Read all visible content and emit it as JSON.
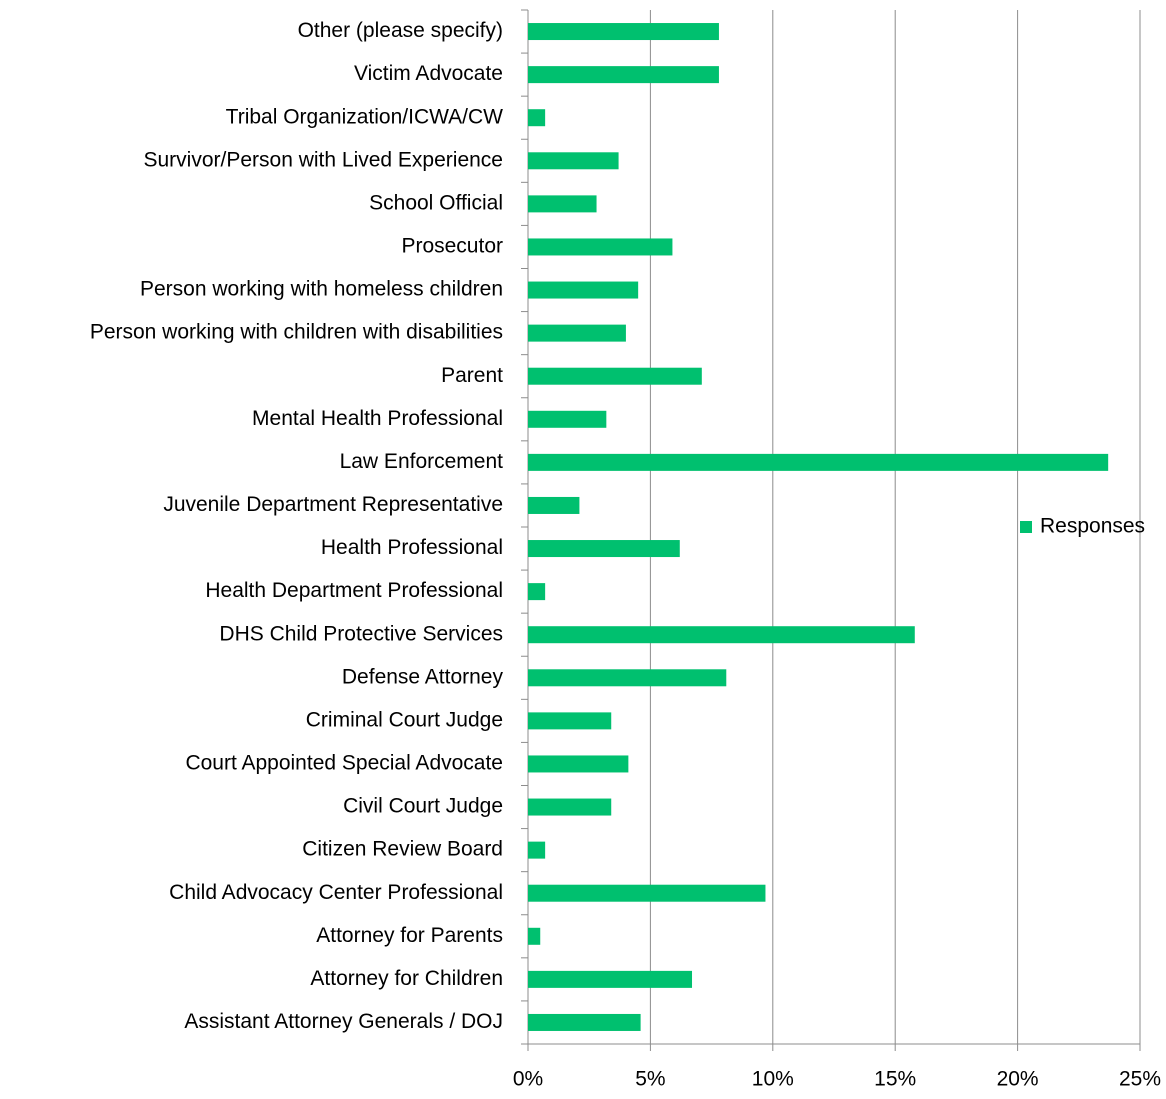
{
  "chart_data": {
    "type": "barh",
    "categories": [
      "Other (please specify)",
      "Victim Advocate",
      "Tribal Organization/ICWA/CW",
      "Survivor/Person with Lived Experience",
      "School Official",
      "Prosecutor",
      "Person working with homeless children",
      "Person working with children with disabilities",
      "Parent",
      "Mental Health Professional",
      "Law Enforcement",
      "Juvenile Department Representative",
      "Health Professional",
      "Health Department Professional",
      "DHS Child Protective Services",
      "Defense Attorney",
      "Criminal Court Judge",
      "Court Appointed Special Advocate",
      "Civil Court Judge",
      "Citizen Review Board",
      "Child Advocacy Center Professional",
      "Attorney for Parents",
      "Attorney for Children",
      "Assistant Attorney Generals / DOJ"
    ],
    "series": [
      {
        "name": "Responses",
        "color": "#00c06f",
        "values": [
          7.8,
          7.8,
          0.7,
          3.7,
          2.8,
          5.9,
          4.5,
          4.0,
          7.1,
          3.2,
          23.7,
          2.1,
          6.2,
          0.7,
          15.8,
          8.1,
          3.4,
          4.1,
          3.4,
          0.7,
          9.7,
          0.5,
          6.7,
          4.6
        ]
      }
    ],
    "xlim": [
      0,
      25
    ],
    "xticks": [
      {
        "value": 0,
        "label": "0%"
      },
      {
        "value": 5,
        "label": "5%"
      },
      {
        "value": 10,
        "label": "10%"
      },
      {
        "value": 15,
        "label": "15%"
      },
      {
        "value": 20,
        "label": "20%"
      },
      {
        "value": 25,
        "label": "25%"
      }
    ],
    "grid": true,
    "legend": "right"
  }
}
